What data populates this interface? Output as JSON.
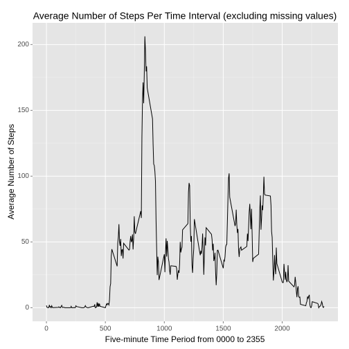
{
  "chart_data": {
    "type": "line",
    "title": "Average Number of Steps Per Time Interval (excluding missing values)",
    "x_label": "Five-minute Time Period from 0000 to 2355",
    "y_label": "Average Number of Steps",
    "x": [
      0,
      5,
      10,
      15,
      20,
      25,
      30,
      35,
      40,
      45,
      50,
      55,
      100,
      105,
      110,
      115,
      120,
      125,
      130,
      135,
      140,
      145,
      150,
      155,
      200,
      205,
      210,
      215,
      220,
      225,
      230,
      235,
      240,
      245,
      250,
      255,
      300,
      305,
      310,
      315,
      320,
      325,
      330,
      335,
      340,
      345,
      350,
      355,
      400,
      405,
      410,
      415,
      420,
      425,
      430,
      435,
      440,
      445,
      450,
      455,
      500,
      505,
      510,
      515,
      520,
      525,
      530,
      535,
      540,
      545,
      550,
      555,
      600,
      605,
      610,
      615,
      620,
      625,
      630,
      635,
      640,
      645,
      650,
      655,
      700,
      705,
      710,
      715,
      720,
      725,
      730,
      735,
      740,
      745,
      750,
      755,
      800,
      805,
      810,
      815,
      820,
      825,
      830,
      835,
      840,
      845,
      850,
      855,
      900,
      905,
      910,
      915,
      920,
      925,
      930,
      935,
      940,
      945,
      950,
      955,
      1000,
      1005,
      1010,
      1015,
      1020,
      1025,
      1030,
      1035,
      1040,
      1045,
      1050,
      1055,
      1100,
      1105,
      1110,
      1115,
      1120,
      1125,
      1130,
      1135,
      1140,
      1145,
      1150,
      1155,
      1200,
      1205,
      1210,
      1215,
      1220,
      1225,
      1230,
      1235,
      1240,
      1245,
      1250,
      1255,
      1300,
      1305,
      1310,
      1315,
      1320,
      1325,
      1330,
      1335,
      1340,
      1345,
      1350,
      1355,
      1400,
      1405,
      1410,
      1415,
      1420,
      1425,
      1430,
      1435,
      1440,
      1445,
      1450,
      1455,
      1500,
      1505,
      1510,
      1515,
      1520,
      1525,
      1530,
      1535,
      1540,
      1545,
      1550,
      1555,
      1600,
      1605,
      1610,
      1615,
      1620,
      1625,
      1630,
      1635,
      1640,
      1645,
      1650,
      1655,
      1700,
      1705,
      1710,
      1715,
      1720,
      1725,
      1730,
      1735,
      1740,
      1745,
      1750,
      1755,
      1800,
      1805,
      1810,
      1815,
      1820,
      1825,
      1830,
      1835,
      1840,
      1845,
      1850,
      1855,
      1900,
      1905,
      1910,
      1915,
      1920,
      1925,
      1930,
      1935,
      1940,
      1945,
      1950,
      1955,
      2000,
      2005,
      2010,
      2015,
      2020,
      2025,
      2030,
      2035,
      2040,
      2045,
      2050,
      2055,
      2100,
      2105,
      2110,
      2115,
      2120,
      2125,
      2130,
      2135,
      2140,
      2145,
      2150,
      2155,
      2200,
      2205,
      2210,
      2215,
      2220,
      2225,
      2230,
      2235,
      2240,
      2245,
      2250,
      2255,
      2300,
      2305,
      2310,
      2315,
      2320,
      2325,
      2330,
      2335,
      2340,
      2345,
      2350,
      2355
    ],
    "values": [
      1.7,
      0.3,
      0.1,
      0.2,
      0.1,
      2.1,
      0.5,
      0.9,
      0,
      1.5,
      0.3,
      0.1,
      0.3,
      0.7,
      0.2,
      0.3,
      0,
      1.1,
      1.8,
      0.2,
      0.2,
      0.4,
      0.3,
      0,
      0,
      0,
      1.1,
      0,
      0,
      0.1,
      0,
      0.2,
      0,
      0,
      1.5,
      0.9,
      0,
      0,
      0,
      0,
      0.2,
      0.6,
      1.6,
      0.6,
      0.5,
      0.1,
      0,
      0,
      1.2,
      0.9,
      2.6,
      0,
      0.3,
      0.4,
      4.1,
      0.7,
      3.5,
      0.8,
      3.1,
      1.1,
      0,
      1.6,
      3,
      2.2,
      3.3,
      3,
      2.1,
      6.1,
      16,
      18.3,
      39.5,
      44.5,
      31.5,
      49.3,
      53.8,
      63.5,
      50,
      47.1,
      52.2,
      39.3,
      44,
      44.2,
      37.4,
      49,
      43.8,
      44.4,
      50.5,
      54.5,
      49.9,
      51,
      55.7,
      44.3,
      52.3,
      69.5,
      57.8,
      56.2,
      73.4,
      68.2,
      129.4,
      157.5,
      171.2,
      155.4,
      177.3,
      206.2,
      195.9,
      179.6,
      183.4,
      167,
      143.5,
      124,
      109.1,
      108.1,
      103.7,
      96,
      66.2,
      45.2,
      24.8,
      38.8,
      35,
      21.1,
      40.6,
      27,
      42.4,
      52.7,
      38.9,
      50.8,
      44.3,
      37.4,
      34.7,
      28.3,
      25.1,
      31.9,
      31.4,
      29.7,
      21.3,
      25.5,
      28.4,
      26.5,
      33.4,
      50,
      42,
      44.6,
      46,
      59.2,
      63.9,
      87.7,
      94.8,
      92.8,
      63.4,
      50.2,
      54.5,
      32.4,
      26.5,
      37.7,
      45.1,
      67.3,
      42.3,
      39.9,
      43.3,
      41,
      46.2,
      56.4,
      42.8,
      25.1,
      40,
      53.5,
      47.3,
      60.8,
      55.8,
      52,
      43.6,
      48.7,
      35.5,
      37.5,
      41.8,
      27.5,
      17.1,
      26.1,
      43.6,
      43.8,
      30,
      36.1,
      35.5,
      38.8,
      46,
      47.8,
      48.1,
      65.3,
      82.9,
      98.7,
      102.1,
      84,
      62.1,
      64.1,
      74.5,
      63.2,
      56.9,
      59.8,
      43.9,
      38.6,
      44.7,
      45.5,
      46.2,
      43.7,
      46.6,
      56.3,
      50.7,
      61.2,
      72.7,
      78.9,
      68.9,
      59.7,
      75.1,
      56.5,
      34.8,
      37.5,
      40.7,
      58,
      74.7,
      85.3,
      59.3,
      67.8,
      77.7,
      74.2,
      85.3,
      99.5,
      86.6,
      85.6,
      84.9,
      77.8,
      58,
      53.4,
      36.3,
      20.7,
      27.4,
      40,
      30.2,
      25.5,
      45.7,
      33.5,
      19.6,
      19,
      19.3,
      33.3,
      26.8,
      21.2,
      27.3,
      21.3,
      19.5,
      21.3,
      32.3,
      20.2,
      15.9,
      17.2,
      23.5,
      19.2,
      12.5,
      8,
      14.7,
      16.3,
      8.7,
      7.8,
      8.1,
      2.6,
      1.5,
      3.7,
      4.8,
      8.5,
      7.1,
      8.7,
      9.8,
      2.2,
      0.3,
      0.1,
      1.6,
      4.6,
      3.3,
      2.8,
      0,
      0.8,
      1,
      1.6,
      2.6,
      4.7,
      3.3,
      0.6,
      0.2,
      1.1
    ],
    "color": "#000000",
    "xlim": [
      -117.75,
      2472.75
    ],
    "xticks": [
      0,
      500,
      1000,
      1500,
      2000
    ],
    "x_minor_ticks": [
      250,
      750,
      1250,
      1750,
      2250
    ],
    "ylim": [
      -10.31,
      216.48
    ],
    "yticks": [
      0,
      50,
      100,
      150,
      200
    ],
    "y_minor_ticks": [
      25,
      75,
      125,
      175
    ],
    "grid": true
  }
}
